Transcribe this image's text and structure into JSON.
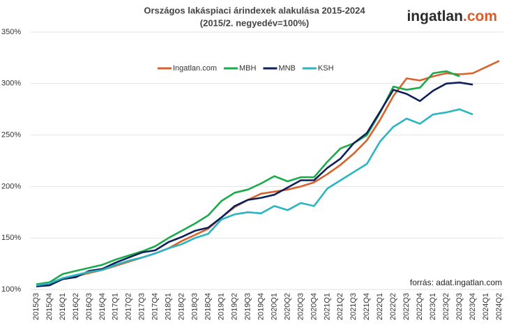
{
  "chart_data": {
    "type": "line",
    "title": "Országos lakáspiaci árindexek alakulása 2015-2024",
    "subtitle": "(2015/2. negyedév=100%)",
    "logo": {
      "main": "ingatlan",
      "accent": ".com"
    },
    "source": "forrás: adat.ingatlan.com",
    "categories": [
      "2015Q3",
      "2015Q4",
      "2016Q1",
      "2016Q2",
      "2016Q3",
      "2016Q4",
      "2017Q1",
      "2017Q2",
      "2017Q3",
      "2017Q4",
      "2018Q1",
      "2018Q2",
      "2018Q3",
      "2018Q4",
      "2019Q1",
      "2019Q2",
      "2019Q3",
      "2019Q4",
      "2020Q1",
      "2020Q2",
      "2020Q3",
      "2020Q4",
      "2021Q1",
      "2021Q2",
      "2021Q3",
      "2021Q4",
      "2022Q1",
      "2022Q2",
      "2022Q3",
      "2022Q4",
      "2023Q1",
      "2023Q2",
      "2023Q3",
      "2023Q4",
      "2024Q1",
      "2024Q2"
    ],
    "series": [
      {
        "name": "Ingatlan.com",
        "color": "#d9622b",
        "values": [
          104,
          106,
          110,
          113,
          116,
          119,
          123,
          127,
          131,
          135,
          140,
          147,
          153,
          159,
          170,
          180,
          187,
          193,
          195,
          197,
          200,
          204,
          212,
          221,
          232,
          245,
          265,
          288,
          305,
          303,
          307,
          310,
          309,
          310,
          316,
          322
        ]
      },
      {
        "name": "MBH",
        "color": "#1aab4b",
        "values": [
          105,
          107,
          115,
          118,
          121,
          124,
          129,
          133,
          137,
          142,
          150,
          157,
          164,
          172,
          186,
          194,
          197,
          203,
          210,
          205,
          209,
          209,
          224,
          237,
          242,
          250,
          272,
          297,
          294,
          296,
          310,
          312,
          307,
          null,
          null,
          null
        ]
      },
      {
        "name": "MNB",
        "color": "#0e1f5b",
        "values": [
          103,
          104,
          110,
          112,
          118,
          120,
          126,
          131,
          136,
          138,
          146,
          151,
          157,
          160,
          170,
          181,
          187,
          189,
          192,
          199,
          206,
          206,
          218,
          227,
          242,
          252,
          273,
          294,
          290,
          283,
          293,
          300,
          301,
          299,
          null,
          null
        ]
      },
      {
        "name": "KSH",
        "color": "#2ab5c1",
        "values": [
          104,
          106,
          111,
          114,
          117,
          119,
          124,
          128,
          131,
          135,
          140,
          144,
          150,
          154,
          168,
          173,
          175,
          174,
          181,
          177,
          184,
          181,
          198,
          206,
          214,
          222,
          244,
          258,
          266,
          261,
          270,
          272,
          275,
          270,
          null,
          null
        ]
      }
    ],
    "ylim": [
      100,
      350
    ],
    "yticks": [
      {
        "value": 100,
        "label": "100%"
      },
      {
        "value": 150,
        "label": "150%"
      },
      {
        "value": 200,
        "label": "200%"
      },
      {
        "value": 250,
        "label": "250%"
      },
      {
        "value": 300,
        "label": "300%"
      },
      {
        "value": 350,
        "label": "350%"
      }
    ],
    "grid": true,
    "legend": "top"
  }
}
